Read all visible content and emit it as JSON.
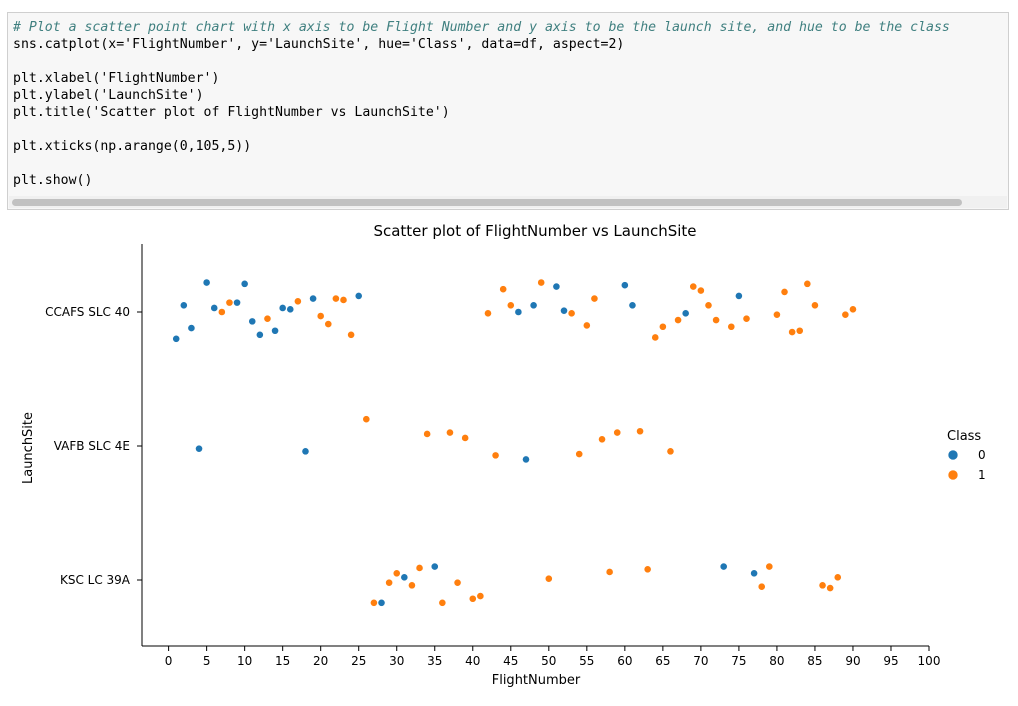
{
  "code_cell": {
    "lines": [
      "# Plot a scatter point chart with x axis to be Flight Number and y axis to be the launch site, and hue to be the class",
      "sns.catplot(x='FlightNumber', y='LaunchSite', hue='Class', data=df, aspect=2)",
      "",
      "plt.xlabel('FlightNumber')",
      "plt.ylabel('LaunchSite')",
      "plt.title('Scatter plot of FlightNumber vs LaunchSite')",
      "",
      "plt.xticks(np.arange(0,105,5))",
      "",
      "plt.show()"
    ]
  },
  "colors": {
    "class_0": "#1f77b4",
    "class_1": "#ff7f0e"
  },
  "chart_data": {
    "type": "scatter",
    "title": "Scatter plot of FlightNumber vs LaunchSite",
    "xlabel": "FlightNumber",
    "ylabel": "LaunchSite",
    "xlim": [
      -3.5,
      100
    ],
    "xticks": [
      0,
      5,
      10,
      15,
      20,
      25,
      30,
      35,
      40,
      45,
      50,
      55,
      60,
      65,
      70,
      75,
      80,
      85,
      90,
      95,
      100
    ],
    "categories": [
      "CCAFS SLC 40",
      "VAFB SLC 4E",
      "KSC LC 39A"
    ],
    "legend": {
      "title": "Class",
      "position": "right",
      "entries": [
        "0",
        "1"
      ]
    },
    "grid": false,
    "series": [
      {
        "name": "0",
        "points": [
          {
            "x": 1,
            "site": "CCAFS SLC 40",
            "j": -0.2
          },
          {
            "x": 2,
            "site": "CCAFS SLC 40",
            "j": 0.05
          },
          {
            "x": 3,
            "site": "CCAFS SLC 40",
            "j": -0.12
          },
          {
            "x": 5,
            "site": "CCAFS SLC 40",
            "j": 0.22
          },
          {
            "x": 6,
            "site": "CCAFS SLC 40",
            "j": 0.03
          },
          {
            "x": 9,
            "site": "CCAFS SLC 40",
            "j": 0.07
          },
          {
            "x": 10,
            "site": "CCAFS SLC 40",
            "j": 0.21
          },
          {
            "x": 11,
            "site": "CCAFS SLC 40",
            "j": -0.07
          },
          {
            "x": 12,
            "site": "CCAFS SLC 40",
            "j": -0.17
          },
          {
            "x": 14,
            "site": "CCAFS SLC 40",
            "j": -0.14
          },
          {
            "x": 15,
            "site": "CCAFS SLC 40",
            "j": 0.03
          },
          {
            "x": 16,
            "site": "CCAFS SLC 40",
            "j": 0.02
          },
          {
            "x": 19,
            "site": "CCAFS SLC 40",
            "j": 0.1
          },
          {
            "x": 25,
            "site": "CCAFS SLC 40",
            "j": 0.12
          },
          {
            "x": 46,
            "site": "CCAFS SLC 40",
            "j": 0.0
          },
          {
            "x": 48,
            "site": "CCAFS SLC 40",
            "j": 0.05
          },
          {
            "x": 51,
            "site": "CCAFS SLC 40",
            "j": 0.19
          },
          {
            "x": 52,
            "site": "CCAFS SLC 40",
            "j": 0.01
          },
          {
            "x": 60,
            "site": "CCAFS SLC 40",
            "j": 0.2
          },
          {
            "x": 61,
            "site": "CCAFS SLC 40",
            "j": 0.05
          },
          {
            "x": 68,
            "site": "CCAFS SLC 40",
            "j": -0.01
          },
          {
            "x": 75,
            "site": "CCAFS SLC 40",
            "j": 0.12
          },
          {
            "x": 4,
            "site": "VAFB SLC 4E",
            "j": -0.02
          },
          {
            "x": 18,
            "site": "VAFB SLC 4E",
            "j": -0.04
          },
          {
            "x": 47,
            "site": "VAFB SLC 4E",
            "j": -0.1
          },
          {
            "x": 28,
            "site": "KSC LC 39A",
            "j": -0.17
          },
          {
            "x": 31,
            "site": "KSC LC 39A",
            "j": 0.02
          },
          {
            "x": 35,
            "site": "KSC LC 39A",
            "j": 0.1
          },
          {
            "x": 73,
            "site": "KSC LC 39A",
            "j": 0.1
          },
          {
            "x": 77,
            "site": "KSC LC 39A",
            "j": 0.05
          }
        ]
      },
      {
        "name": "1",
        "points": [
          {
            "x": 7,
            "site": "CCAFS SLC 40",
            "j": 0.0
          },
          {
            "x": 8,
            "site": "CCAFS SLC 40",
            "j": 0.07
          },
          {
            "x": 13,
            "site": "CCAFS SLC 40",
            "j": -0.05
          },
          {
            "x": 17,
            "site": "CCAFS SLC 40",
            "j": 0.08
          },
          {
            "x": 20,
            "site": "CCAFS SLC 40",
            "j": -0.03
          },
          {
            "x": 21,
            "site": "CCAFS SLC 40",
            "j": -0.09
          },
          {
            "x": 22,
            "site": "CCAFS SLC 40",
            "j": 0.1
          },
          {
            "x": 23,
            "site": "CCAFS SLC 40",
            "j": 0.09
          },
          {
            "x": 24,
            "site": "CCAFS SLC 40",
            "j": -0.17
          },
          {
            "x": 42,
            "site": "CCAFS SLC 40",
            "j": -0.01
          },
          {
            "x": 44,
            "site": "CCAFS SLC 40",
            "j": 0.17
          },
          {
            "x": 45,
            "site": "CCAFS SLC 40",
            "j": 0.05
          },
          {
            "x": 49,
            "site": "CCAFS SLC 40",
            "j": 0.22
          },
          {
            "x": 53,
            "site": "CCAFS SLC 40",
            "j": -0.01
          },
          {
            "x": 55,
            "site": "CCAFS SLC 40",
            "j": -0.1
          },
          {
            "x": 56,
            "site": "CCAFS SLC 40",
            "j": 0.1
          },
          {
            "x": 64,
            "site": "CCAFS SLC 40",
            "j": -0.19
          },
          {
            "x": 65,
            "site": "CCAFS SLC 40",
            "j": -0.11
          },
          {
            "x": 67,
            "site": "CCAFS SLC 40",
            "j": -0.06
          },
          {
            "x": 69,
            "site": "CCAFS SLC 40",
            "j": 0.19
          },
          {
            "x": 70,
            "site": "CCAFS SLC 40",
            "j": 0.16
          },
          {
            "x": 71,
            "site": "CCAFS SLC 40",
            "j": 0.05
          },
          {
            "x": 72,
            "site": "CCAFS SLC 40",
            "j": -0.06
          },
          {
            "x": 74,
            "site": "CCAFS SLC 40",
            "j": -0.11
          },
          {
            "x": 76,
            "site": "CCAFS SLC 40",
            "j": -0.05
          },
          {
            "x": 80,
            "site": "CCAFS SLC 40",
            "j": -0.02
          },
          {
            "x": 81,
            "site": "CCAFS SLC 40",
            "j": 0.15
          },
          {
            "x": 82,
            "site": "CCAFS SLC 40",
            "j": -0.15
          },
          {
            "x": 83,
            "site": "CCAFS SLC 40",
            "j": -0.14
          },
          {
            "x": 84,
            "site": "CCAFS SLC 40",
            "j": 0.21
          },
          {
            "x": 85,
            "site": "CCAFS SLC 40",
            "j": 0.05
          },
          {
            "x": 89,
            "site": "CCAFS SLC 40",
            "j": -0.02
          },
          {
            "x": 90,
            "site": "CCAFS SLC 40",
            "j": 0.02
          },
          {
            "x": 26,
            "site": "VAFB SLC 4E",
            "j": 0.2
          },
          {
            "x": 34,
            "site": "VAFB SLC 4E",
            "j": 0.09
          },
          {
            "x": 37,
            "site": "VAFB SLC 4E",
            "j": 0.1
          },
          {
            "x": 39,
            "site": "VAFB SLC 4E",
            "j": 0.06
          },
          {
            "x": 43,
            "site": "VAFB SLC 4E",
            "j": -0.07
          },
          {
            "x": 54,
            "site": "VAFB SLC 4E",
            "j": -0.06
          },
          {
            "x": 57,
            "site": "VAFB SLC 4E",
            "j": 0.05
          },
          {
            "x": 59,
            "site": "VAFB SLC 4E",
            "j": 0.1
          },
          {
            "x": 62,
            "site": "VAFB SLC 4E",
            "j": 0.11
          },
          {
            "x": 66,
            "site": "VAFB SLC 4E",
            "j": -0.04
          },
          {
            "x": 27,
            "site": "KSC LC 39A",
            "j": -0.17
          },
          {
            "x": 29,
            "site": "KSC LC 39A",
            "j": -0.02
          },
          {
            "x": 30,
            "site": "KSC LC 39A",
            "j": 0.05
          },
          {
            "x": 32,
            "site": "KSC LC 39A",
            "j": -0.04
          },
          {
            "x": 33,
            "site": "KSC LC 39A",
            "j": 0.09
          },
          {
            "x": 36,
            "site": "KSC LC 39A",
            "j": -0.17
          },
          {
            "x": 38,
            "site": "KSC LC 39A",
            "j": -0.02
          },
          {
            "x": 40,
            "site": "KSC LC 39A",
            "j": -0.14
          },
          {
            "x": 41,
            "site": "KSC LC 39A",
            "j": -0.12
          },
          {
            "x": 50,
            "site": "KSC LC 39A",
            "j": 0.01
          },
          {
            "x": 58,
            "site": "KSC LC 39A",
            "j": 0.06
          },
          {
            "x": 63,
            "site": "KSC LC 39A",
            "j": 0.08
          },
          {
            "x": 78,
            "site": "KSC LC 39A",
            "j": -0.05
          },
          {
            "x": 79,
            "site": "KSC LC 39A",
            "j": 0.1
          },
          {
            "x": 86,
            "site": "KSC LC 39A",
            "j": -0.04
          },
          {
            "x": 87,
            "site": "KSC LC 39A",
            "j": -0.06
          },
          {
            "x": 88,
            "site": "KSC LC 39A",
            "j": 0.02
          }
        ]
      }
    ]
  }
}
